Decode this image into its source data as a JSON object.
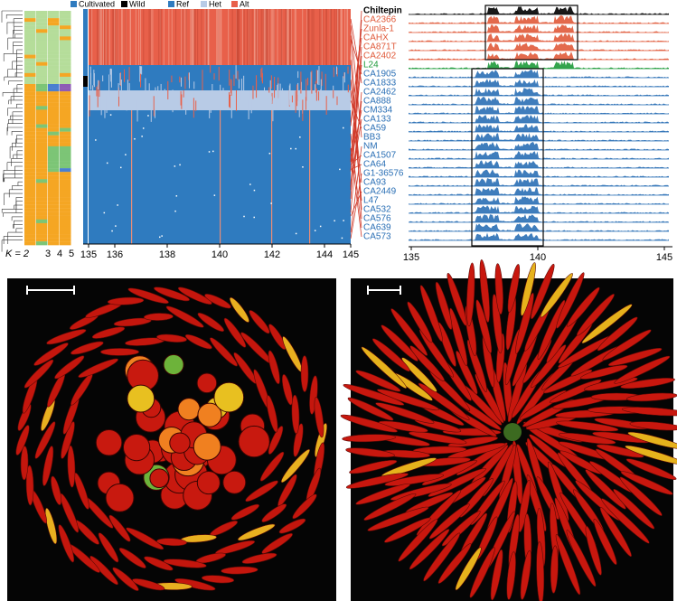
{
  "legend": {
    "sample_type": [
      "Cultivated",
      "Wild"
    ],
    "genotype": [
      "Ref",
      "Het",
      "Alt"
    ]
  },
  "structure": {
    "k_labels": [
      "K = 2",
      "3",
      "4",
      "5"
    ]
  },
  "heatmap": {
    "xticks": [
      135,
      136,
      138,
      140,
      142,
      144,
      145
    ]
  },
  "tracks": {
    "samples": [
      "Chiltepin",
      "CA2366",
      "Zunla-1",
      "CAHX",
      "CA871T",
      "CA2402",
      "L24",
      "CA1905",
      "CA1833",
      "CA2462",
      "CA888",
      "CM334",
      "CA133",
      "CA59",
      "BB3",
      "NM",
      "CA1507",
      "CA64",
      "G1-36576",
      "CA93",
      "CA2449",
      "L47",
      "CA532",
      "CA576",
      "CA639",
      "CA573"
    ],
    "xticks": [
      135,
      140,
      145
    ]
  }
}
